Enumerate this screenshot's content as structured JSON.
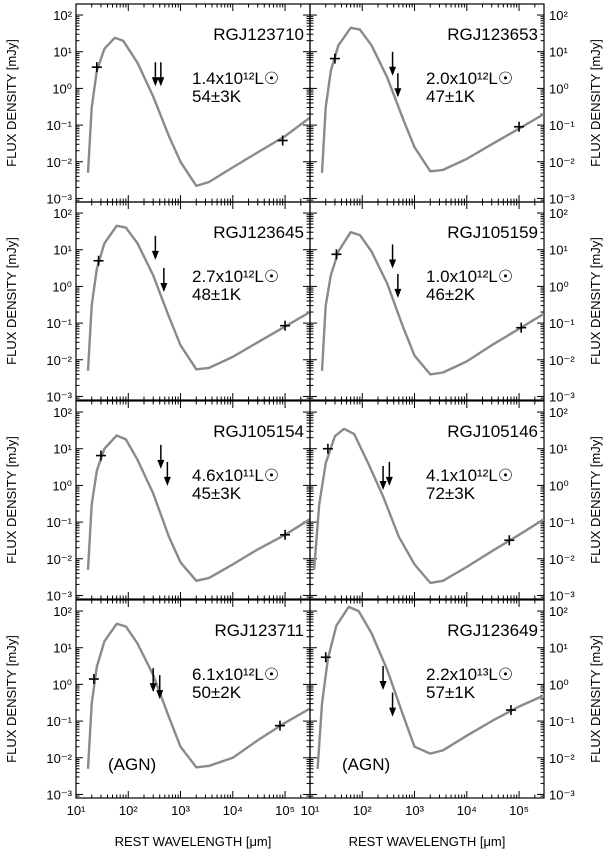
{
  "axes": {
    "ylabel": "FLUX DENSITY [mJy]",
    "xlabel": "REST WAVELENGTH [μm]",
    "y_ticks": [
      "10²",
      "10¹",
      "10⁰",
      "10⁻¹",
      "10⁻²",
      "10⁻³"
    ],
    "x_ticks": [
      "10¹",
      "10²",
      "10³",
      "10⁴",
      "10⁵"
    ]
  },
  "chart_data": [
    {
      "type": "line",
      "panel": "RGJ123710",
      "luminosity": "1.4x10¹²L☉",
      "temperature": "54±3K",
      "note": "",
      "xscale": "log",
      "yscale": "log",
      "xlim": [
        10,
        300000
      ],
      "ylim": [
        0.0008,
        200
      ],
      "curve": [
        {
          "x": 17,
          "y": 0.005
        },
        {
          "x": 20,
          "y": 0.3
        },
        {
          "x": 25,
          "y": 3
        },
        {
          "x": 35,
          "y": 12
        },
        {
          "x": 55,
          "y": 24
        },
        {
          "x": 80,
          "y": 20
        },
        {
          "x": 150,
          "y": 5
        },
        {
          "x": 300,
          "y": 0.6
        },
        {
          "x": 600,
          "y": 0.05
        },
        {
          "x": 1000,
          "y": 0.01
        },
        {
          "x": 2000,
          "y": 0.0022
        },
        {
          "x": 3500,
          "y": 0.0028
        },
        {
          "x": 10000,
          "y": 0.007
        },
        {
          "x": 30000,
          "y": 0.018
        },
        {
          "x": 100000,
          "y": 0.05
        },
        {
          "x": 300000,
          "y": 0.16
        }
      ],
      "detections": [
        {
          "x": 25,
          "y": 3.8
        },
        {
          "x": 90000,
          "y": 0.038
        }
      ],
      "upper_limits": [
        {
          "x": 330,
          "y": 1.3
        },
        {
          "x": 420,
          "y": 1.3
        }
      ]
    },
    {
      "type": "line",
      "panel": "RGJ123653",
      "luminosity": "2.0x10¹²L☉",
      "temperature": "47±1K",
      "note": "",
      "xscale": "log",
      "yscale": "log",
      "xlim": [
        10,
        300000
      ],
      "ylim": [
        0.0008,
        200
      ],
      "curve": [
        {
          "x": 17,
          "y": 0.005
        },
        {
          "x": 20,
          "y": 0.3
        },
        {
          "x": 25,
          "y": 3
        },
        {
          "x": 35,
          "y": 15
        },
        {
          "x": 60,
          "y": 45
        },
        {
          "x": 90,
          "y": 40
        },
        {
          "x": 150,
          "y": 15
        },
        {
          "x": 300,
          "y": 2
        },
        {
          "x": 600,
          "y": 0.15
        },
        {
          "x": 1000,
          "y": 0.025
        },
        {
          "x": 2000,
          "y": 0.0055
        },
        {
          "x": 3500,
          "y": 0.006
        },
        {
          "x": 10000,
          "y": 0.012
        },
        {
          "x": 30000,
          "y": 0.03
        },
        {
          "x": 100000,
          "y": 0.08
        },
        {
          "x": 300000,
          "y": 0.2
        }
      ],
      "detections": [
        {
          "x": 30,
          "y": 6.5
        },
        {
          "x": 100000,
          "y": 0.09
        }
      ],
      "upper_limits": [
        {
          "x": 380,
          "y": 2.5
        },
        {
          "x": 480,
          "y": 0.65
        }
      ]
    },
    {
      "type": "line",
      "panel": "RGJ123645",
      "luminosity": "2.7x10¹²L☉",
      "temperature": "48±1K",
      "note": "",
      "xscale": "log",
      "yscale": "log",
      "xlim": [
        10,
        300000
      ],
      "ylim": [
        0.0008,
        200
      ],
      "curve": [
        {
          "x": 17,
          "y": 0.005
        },
        {
          "x": 20,
          "y": 0.3
        },
        {
          "x": 25,
          "y": 3
        },
        {
          "x": 35,
          "y": 15
        },
        {
          "x": 60,
          "y": 45
        },
        {
          "x": 90,
          "y": 40
        },
        {
          "x": 150,
          "y": 15
        },
        {
          "x": 300,
          "y": 2
        },
        {
          "x": 600,
          "y": 0.15
        },
        {
          "x": 1000,
          "y": 0.025
        },
        {
          "x": 2000,
          "y": 0.0055
        },
        {
          "x": 3500,
          "y": 0.006
        },
        {
          "x": 10000,
          "y": 0.012
        },
        {
          "x": 30000,
          "y": 0.03
        },
        {
          "x": 100000,
          "y": 0.08
        },
        {
          "x": 300000,
          "y": 0.2
        }
      ],
      "detections": [
        {
          "x": 27,
          "y": 5
        },
        {
          "x": 100000,
          "y": 0.085
        }
      ],
      "upper_limits": [
        {
          "x": 330,
          "y": 6
        },
        {
          "x": 480,
          "y": 0.8
        }
      ]
    },
    {
      "type": "line",
      "panel": "RGJ105159",
      "luminosity": "1.0x10¹²L☉",
      "temperature": "46±2K",
      "note": "",
      "xscale": "log",
      "yscale": "log",
      "xlim": [
        10,
        300000
      ],
      "ylim": [
        0.0008,
        200
      ],
      "curve": [
        {
          "x": 17,
          "y": 0.005
        },
        {
          "x": 20,
          "y": 0.3
        },
        {
          "x": 25,
          "y": 2
        },
        {
          "x": 35,
          "y": 9
        },
        {
          "x": 60,
          "y": 30
        },
        {
          "x": 90,
          "y": 25
        },
        {
          "x": 150,
          "y": 9
        },
        {
          "x": 300,
          "y": 1.2
        },
        {
          "x": 600,
          "y": 0.08
        },
        {
          "x": 1000,
          "y": 0.013
        },
        {
          "x": 2000,
          "y": 0.004
        },
        {
          "x": 3500,
          "y": 0.0045
        },
        {
          "x": 10000,
          "y": 0.009
        },
        {
          "x": 30000,
          "y": 0.025
        },
        {
          "x": 100000,
          "y": 0.07
        },
        {
          "x": 300000,
          "y": 0.18
        }
      ],
      "detections": [
        {
          "x": 32,
          "y": 7.5
        },
        {
          "x": 110000,
          "y": 0.075
        }
      ],
      "upper_limits": [
        {
          "x": 380,
          "y": 3.5
        },
        {
          "x": 480,
          "y": 0.55
        }
      ]
    },
    {
      "type": "line",
      "panel": "RGJ105154",
      "luminosity": "4.6x10¹¹L☉",
      "temperature": "45±3K",
      "note": "",
      "xscale": "log",
      "yscale": "log",
      "xlim": [
        10,
        300000
      ],
      "ylim": [
        0.0008,
        200
      ],
      "curve": [
        {
          "x": 17,
          "y": 0.005
        },
        {
          "x": 20,
          "y": 0.3
        },
        {
          "x": 25,
          "y": 2.5
        },
        {
          "x": 35,
          "y": 10
        },
        {
          "x": 60,
          "y": 23
        },
        {
          "x": 90,
          "y": 18
        },
        {
          "x": 150,
          "y": 5
        },
        {
          "x": 300,
          "y": 0.6
        },
        {
          "x": 600,
          "y": 0.04
        },
        {
          "x": 1000,
          "y": 0.008
        },
        {
          "x": 2000,
          "y": 0.0025
        },
        {
          "x": 3500,
          "y": 0.003
        },
        {
          "x": 10000,
          "y": 0.007
        },
        {
          "x": 30000,
          "y": 0.018
        },
        {
          "x": 100000,
          "y": 0.045
        },
        {
          "x": 300000,
          "y": 0.12
        }
      ],
      "detections": [
        {
          "x": 30,
          "y": 6.5
        },
        {
          "x": 100000,
          "y": 0.045
        }
      ],
      "upper_limits": [
        {
          "x": 420,
          "y": 3.2
        },
        {
          "x": 560,
          "y": 1.1
        }
      ]
    },
    {
      "type": "line",
      "panel": "RGJ105146",
      "luminosity": "4.1x10¹²L☉",
      "temperature": "72±3K",
      "note": "",
      "xscale": "log",
      "yscale": "log",
      "xlim": [
        10,
        300000
      ],
      "ylim": [
        0.0008,
        200
      ],
      "curve": [
        {
          "x": 12,
          "y": 0.005
        },
        {
          "x": 15,
          "y": 0.3
        },
        {
          "x": 20,
          "y": 4
        },
        {
          "x": 30,
          "y": 22
        },
        {
          "x": 45,
          "y": 35
        },
        {
          "x": 70,
          "y": 25
        },
        {
          "x": 130,
          "y": 4
        },
        {
          "x": 250,
          "y": 0.5
        },
        {
          "x": 500,
          "y": 0.04
        },
        {
          "x": 1000,
          "y": 0.007
        },
        {
          "x": 2000,
          "y": 0.0022
        },
        {
          "x": 3500,
          "y": 0.0025
        },
        {
          "x": 10000,
          "y": 0.006
        },
        {
          "x": 30000,
          "y": 0.016
        },
        {
          "x": 100000,
          "y": 0.045
        },
        {
          "x": 300000,
          "y": 0.12
        }
      ],
      "detections": [
        {
          "x": 22,
          "y": 10
        },
        {
          "x": 65000,
          "y": 0.032
        }
      ],
      "upper_limits": [
        {
          "x": 250,
          "y": 0.85
        },
        {
          "x": 330,
          "y": 1.1
        }
      ]
    },
    {
      "type": "line",
      "panel": "RGJ123711",
      "luminosity": "6.1x10¹²L☉",
      "temperature": "50±2K",
      "note": "(AGN)",
      "xscale": "log",
      "yscale": "log",
      "xlim": [
        10,
        300000
      ],
      "ylim": [
        0.0008,
        200
      ],
      "curve": [
        {
          "x": 17,
          "y": 0.005
        },
        {
          "x": 20,
          "y": 0.3
        },
        {
          "x": 25,
          "y": 3
        },
        {
          "x": 35,
          "y": 15
        },
        {
          "x": 60,
          "y": 45
        },
        {
          "x": 90,
          "y": 38
        },
        {
          "x": 150,
          "y": 13
        },
        {
          "x": 300,
          "y": 1.8
        },
        {
          "x": 600,
          "y": 0.13
        },
        {
          "x": 1000,
          "y": 0.02
        },
        {
          "x": 2000,
          "y": 0.0055
        },
        {
          "x": 3500,
          "y": 0.006
        },
        {
          "x": 10000,
          "y": 0.01
        },
        {
          "x": 30000,
          "y": 0.03
        },
        {
          "x": 100000,
          "y": 0.09
        },
        {
          "x": 300000,
          "y": 0.22
        }
      ],
      "detections": [
        {
          "x": 22,
          "y": 1.4
        },
        {
          "x": 80000,
          "y": 0.075
        }
      ],
      "upper_limits": [
        {
          "x": 300,
          "y": 0.7
        },
        {
          "x": 400,
          "y": 0.45
        }
      ]
    },
    {
      "type": "line",
      "panel": "RGJ123649",
      "luminosity": "2.2x10¹³L☉",
      "temperature": "57±1K",
      "note": "(AGN)",
      "xscale": "log",
      "yscale": "log",
      "xlim": [
        10,
        300000
      ],
      "ylim": [
        0.0008,
        200
      ],
      "curve": [
        {
          "x": 14,
          "y": 0.005
        },
        {
          "x": 17,
          "y": 0.3
        },
        {
          "x": 22,
          "y": 5
        },
        {
          "x": 32,
          "y": 40
        },
        {
          "x": 55,
          "y": 130
        },
        {
          "x": 85,
          "y": 100
        },
        {
          "x": 150,
          "y": 25
        },
        {
          "x": 300,
          "y": 2.5
        },
        {
          "x": 600,
          "y": 0.15
        },
        {
          "x": 1000,
          "y": 0.02
        },
        {
          "x": 2000,
          "y": 0.013
        },
        {
          "x": 3500,
          "y": 0.016
        },
        {
          "x": 10000,
          "y": 0.04
        },
        {
          "x": 30000,
          "y": 0.1
        },
        {
          "x": 100000,
          "y": 0.25
        },
        {
          "x": 300000,
          "y": 0.5
        }
      ],
      "detections": [
        {
          "x": 20,
          "y": 5.5
        },
        {
          "x": 70000,
          "y": 0.2
        }
      ],
      "upper_limits": [
        {
          "x": 250,
          "y": 0.8
        },
        {
          "x": 380,
          "y": 0.15
        }
      ]
    }
  ]
}
